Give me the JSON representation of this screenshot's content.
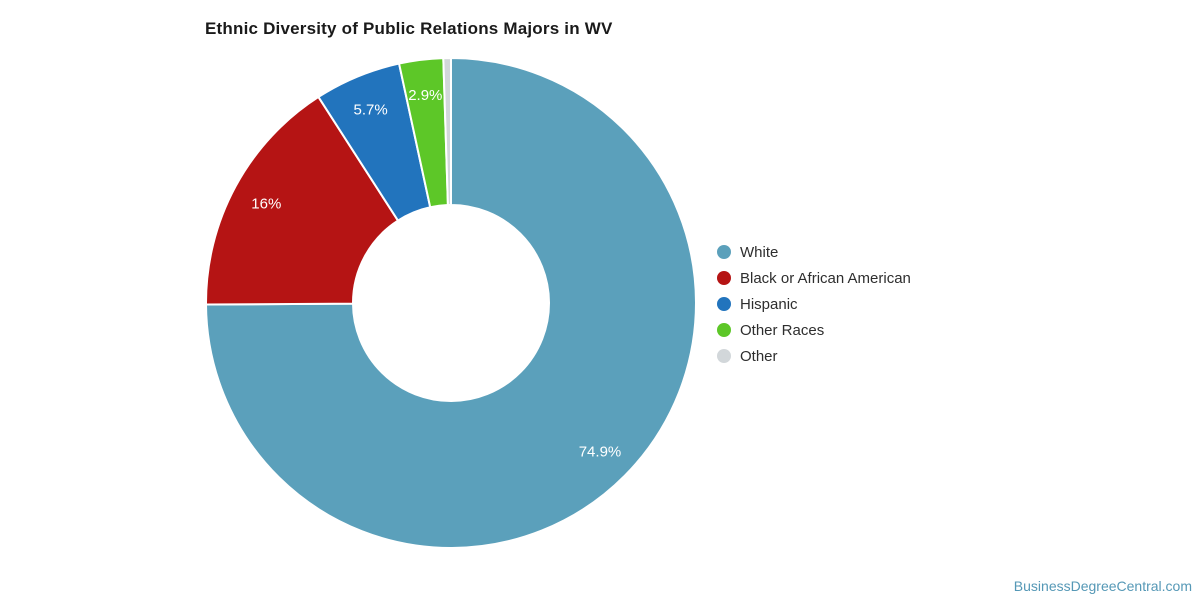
{
  "title": "Ethnic Diversity of Public Relations Majors in WV",
  "footer": {
    "link_text": "BusinessDegreeCentral.com",
    "color": "#5598b6"
  },
  "chart_data": {
    "type": "pie",
    "subtype": "donut",
    "title": "Ethnic Diversity of Public Relations Majors in WV",
    "categories": [
      "White",
      "Black or African American",
      "Hispanic",
      "Other Races",
      "Other"
    ],
    "values": [
      74.9,
      16,
      5.7,
      2.9,
      0.5
    ],
    "slice_labels": [
      "74.9%",
      "16%",
      "5.7%",
      "2.9%",
      ""
    ],
    "colors": [
      "#5ba0bb",
      "#b51414",
      "#2274bd",
      "#5dc728",
      "#d2d7da"
    ],
    "start_angle_deg": 0,
    "direction": "clockwise",
    "inner_radius_ratio": 0.4,
    "slice_label_color": "#ffffff",
    "legend_position": "right",
    "gap_color": "#ffffff"
  }
}
